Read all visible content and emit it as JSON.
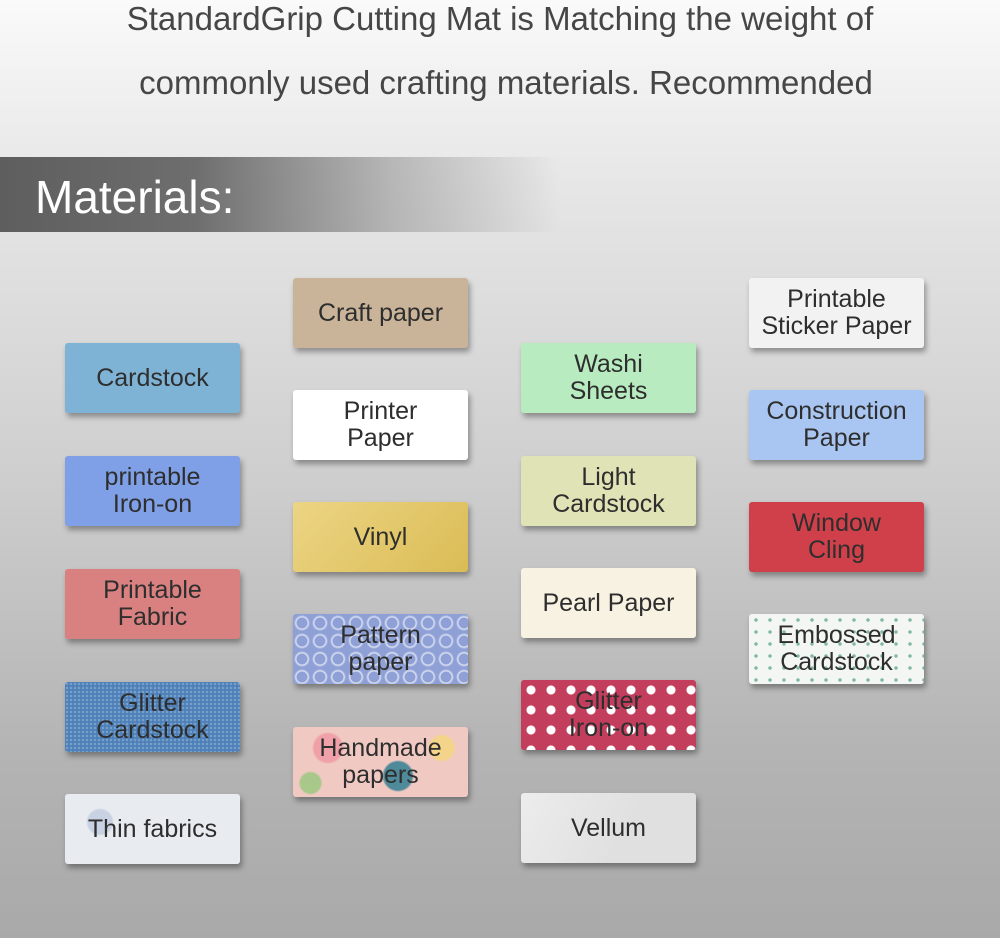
{
  "intro": {
    "line1": "StandardGrip Cutting Mat is Matching the weight of",
    "line2": "commonly used crafting materials. Recommended"
  },
  "banner": {
    "title": "Materials:"
  },
  "materials": [
    {
      "label": "Cardstock",
      "color": "#7fb3d6"
    },
    {
      "label": "printable\nIron-on",
      "color": "#7f9fe6"
    },
    {
      "label": "Printable\nFabric",
      "color": "#d98080"
    },
    {
      "label": "Glitter\nCardstock",
      "color": "#4d7fb8"
    },
    {
      "label": "Thin fabrics",
      "color": "#e8ecf0"
    },
    {
      "label": "Craft paper",
      "color": "#c9b49a"
    },
    {
      "label": "Printer\nPaper",
      "color": "#ffffff"
    },
    {
      "label": "Vinyl",
      "color": "#e6c65a"
    },
    {
      "label": "Pattern\npaper",
      "color": "#8fa0d6"
    },
    {
      "label": "Handmade\npapers",
      "color": "#f1c9c3"
    },
    {
      "label": "Washi\nSheets",
      "color": "#b8ecc0"
    },
    {
      "label": "Light\nCardstock",
      "color": "#dfe3b5"
    },
    {
      "label": "Pearl Paper",
      "color": "#f8f2e2"
    },
    {
      "label": "Glitter\nIron-on",
      "color": "#c23e5c"
    },
    {
      "label": "Vellum",
      "color": "#e0e0e0"
    },
    {
      "label": "Printable\nSticker Paper",
      "color": "#f2f2f2"
    },
    {
      "label": "Construction\nPaper",
      "color": "#a9c6f2"
    },
    {
      "label": "Window\nCling",
      "color": "#d0404a"
    },
    {
      "label": "Embossed\nCardstock",
      "color": "#f4f6f4"
    }
  ]
}
